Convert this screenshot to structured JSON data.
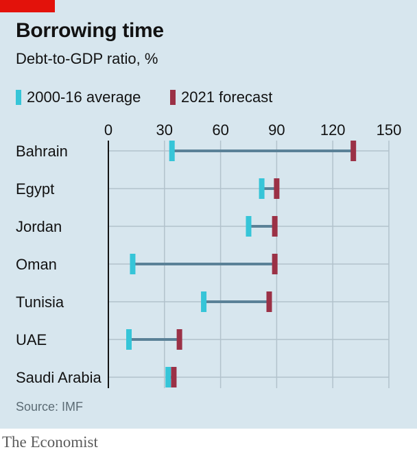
{
  "header": {
    "title": "Borrowing time",
    "subtitle": "Debt-to-GDP ratio, %"
  },
  "legend": {
    "avg_label": "2000-16 average",
    "forecast_label": "2021 forecast"
  },
  "source": "Source: IMF",
  "footer": "The Economist",
  "colors": {
    "brand_red": "#e3120b",
    "avg": "#36c5d8",
    "forecast": "#9b3146",
    "connector": "#5a8197",
    "background": "#d7e6ee"
  },
  "chart_data": {
    "type": "dumbbell",
    "title": "Borrowing time",
    "subtitle": "Debt-to-GDP ratio, %",
    "categories": [
      "Bahrain",
      "Egypt",
      "Jordan",
      "Oman",
      "Tunisia",
      "UAE",
      "Saudi Arabia"
    ],
    "series": [
      {
        "name": "2000-16 average",
        "values": [
          34,
          82,
          75,
          13,
          51,
          11,
          32
        ]
      },
      {
        "name": "2021 forecast",
        "values": [
          131,
          90,
          89,
          89,
          86,
          38,
          35
        ]
      }
    ],
    "xlim": [
      0,
      150
    ],
    "xticks": [
      0,
      30,
      60,
      90,
      120,
      150
    ],
    "grid": true
  }
}
